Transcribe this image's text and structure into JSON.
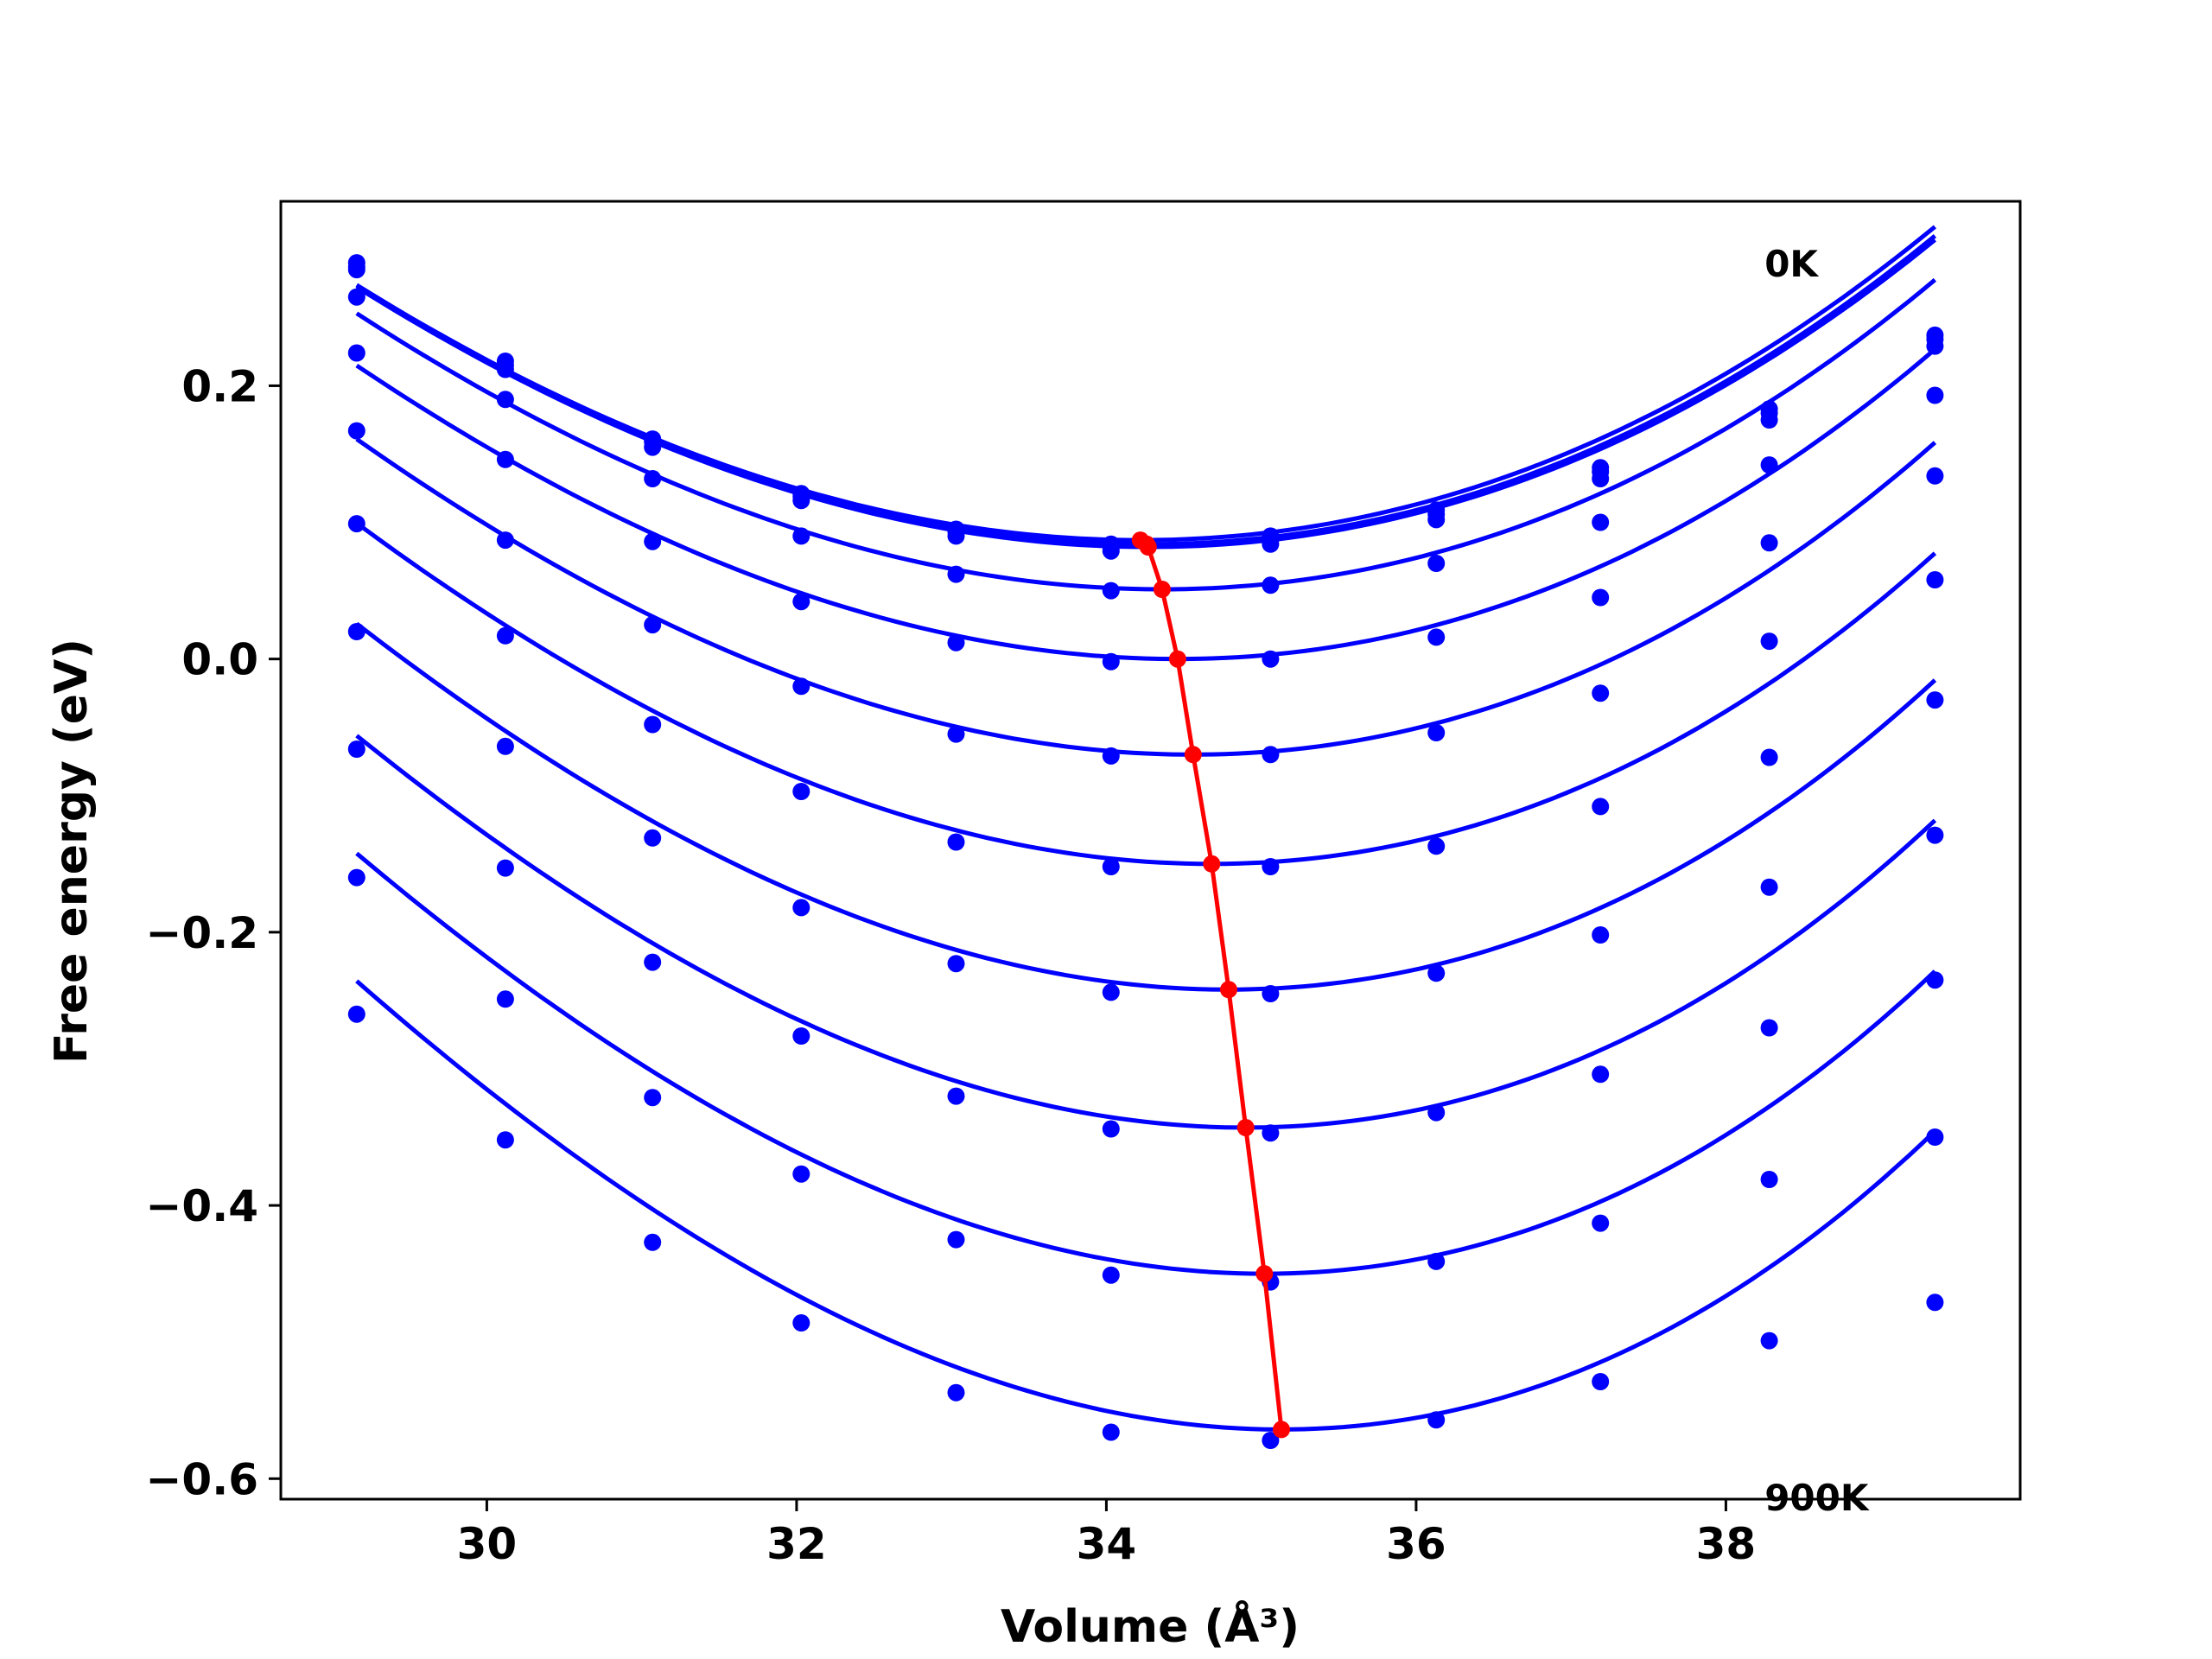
{
  "chart_data": {
    "type": "line",
    "title": "",
    "xlabel": "Volume (Å³)",
    "ylabel": "Free energy (eV)",
    "xlim": [
      28.67,
      39.9
    ],
    "ylim": [
      -0.615,
      0.335
    ],
    "xticks": [
      30,
      32,
      34,
      36,
      38
    ],
    "xtick_labels": [
      "30",
      "32",
      "34",
      "36",
      "38"
    ],
    "yticks": [
      -0.6,
      -0.4,
      -0.2,
      0.0,
      0.2
    ],
    "ytick_labels": [
      "−0.6",
      "−0.4",
      "−0.2",
      "0.0",
      "0.2"
    ],
    "grid": false,
    "legend": "none",
    "annotations": [
      {
        "text": "0K",
        "x": 38.25,
        "y": 0.29
      },
      {
        "text": "900K",
        "x": 38.25,
        "y": -0.613
      }
    ],
    "colors": {
      "curves": "#0000ff",
      "minimum_line": "#ff0000",
      "frame": "#000000"
    },
    "x": [
      29.16,
      30.12,
      31.07,
      32.03,
      33.03,
      34.03,
      35.06,
      36.13,
      37.19,
      38.28,
      39.35
    ],
    "series": [
      {
        "points": [
          0.29,
          0.218,
          0.161,
          0.121,
          0.095,
          0.084,
          0.09,
          0.109,
          0.14,
          0.183,
          0.237
        ],
        "fit": {
          "v0": 34.22,
          "e0": 0.087,
          "a": 0.008,
          "b": 0.00014
        }
      },
      {
        "points": [
          0.287,
          0.215,
          0.159,
          0.119,
          0.093,
          0.082,
          0.087,
          0.106,
          0.137,
          0.18,
          0.234
        ],
        "fit": {
          "v0": 34.26,
          "e0": 0.084,
          "a": 0.008,
          "b": 0.00014
        }
      },
      {
        "points": [
          0.285,
          0.212,
          0.155,
          0.116,
          0.09,
          0.079,
          0.084,
          0.102,
          0.132,
          0.175,
          0.229
        ],
        "fit": {
          "v0": 34.27,
          "e0": 0.082,
          "a": 0.008,
          "b": 0.00014
        }
      },
      {
        "points": [
          0.265,
          0.19,
          0.132,
          0.09,
          0.062,
          0.05,
          0.054,
          0.07,
          0.1,
          0.142,
          0.193
        ],
        "fit": {
          "v0": 34.36,
          "e0": 0.051,
          "a": 0.0083,
          "b": 0.00016
        }
      },
      {
        "points": [
          0.224,
          0.146,
          0.086,
          0.042,
          0.012,
          -0.002,
          0.0,
          0.016,
          0.045,
          0.085,
          0.134
        ],
        "fit": {
          "v0": 34.46,
          "e0": 0.0,
          "a": 0.0086,
          "b": 0.00018
        }
      },
      {
        "points": [
          0.167,
          0.087,
          0.025,
          -0.02,
          -0.055,
          -0.071,
          -0.07,
          -0.054,
          -0.025,
          0.013,
          0.058
        ],
        "fit": {
          "v0": 34.56,
          "e0": -0.07,
          "a": 0.009,
          "b": 0.0002
        }
      },
      {
        "points": [
          0.099,
          0.017,
          -0.048,
          -0.097,
          -0.134,
          -0.152,
          -0.152,
          -0.137,
          -0.108,
          -0.072,
          -0.03
        ],
        "fit": {
          "v0": 34.68,
          "e0": -0.15,
          "a": 0.0094,
          "b": 0.00022
        }
      },
      {
        "points": [
          0.02,
          -0.064,
          -0.131,
          -0.182,
          -0.223,
          -0.244,
          -0.245,
          -0.23,
          -0.202,
          -0.167,
          -0.129
        ],
        "fit": {
          "v0": 34.79,
          "e0": -0.242,
          "a": 0.0098,
          "b": 0.00024
        }
      },
      {
        "points": [
          -0.066,
          -0.153,
          -0.222,
          -0.276,
          -0.32,
          -0.344,
          -0.347,
          -0.332,
          -0.304,
          -0.27,
          -0.235
        ],
        "fit": {
          "v0": 34.9,
          "e0": -0.343,
          "a": 0.0102,
          "b": 0.00026
        }
      },
      {
        "points": [
          -0.16,
          -0.249,
          -0.321,
          -0.377,
          -0.425,
          -0.451,
          -0.456,
          -0.441,
          -0.413,
          -0.381,
          -0.35
        ],
        "fit": {
          "v0": 35.02,
          "e0": -0.45,
          "a": 0.0106,
          "b": 0.00028
        }
      },
      {
        "points": [
          -0.26,
          -0.352,
          -0.427,
          -0.486,
          -0.537,
          -0.566,
          -0.572,
          -0.557,
          -0.529,
          -0.499,
          -0.471
        ],
        "fit": {
          "v0": 35.13,
          "e0": -0.564,
          "a": 0.011,
          "b": 0.0003
        }
      }
    ],
    "minimum_line": {
      "x": [
        34.22,
        34.26,
        34.27,
        34.36,
        34.46,
        34.56,
        34.68,
        34.79,
        34.9,
        35.02,
        35.13
      ],
      "y": [
        0.087,
        0.084,
        0.082,
        0.051,
        0.0,
        -0.07,
        -0.15,
        -0.242,
        -0.343,
        -0.45,
        -0.564
      ]
    }
  }
}
